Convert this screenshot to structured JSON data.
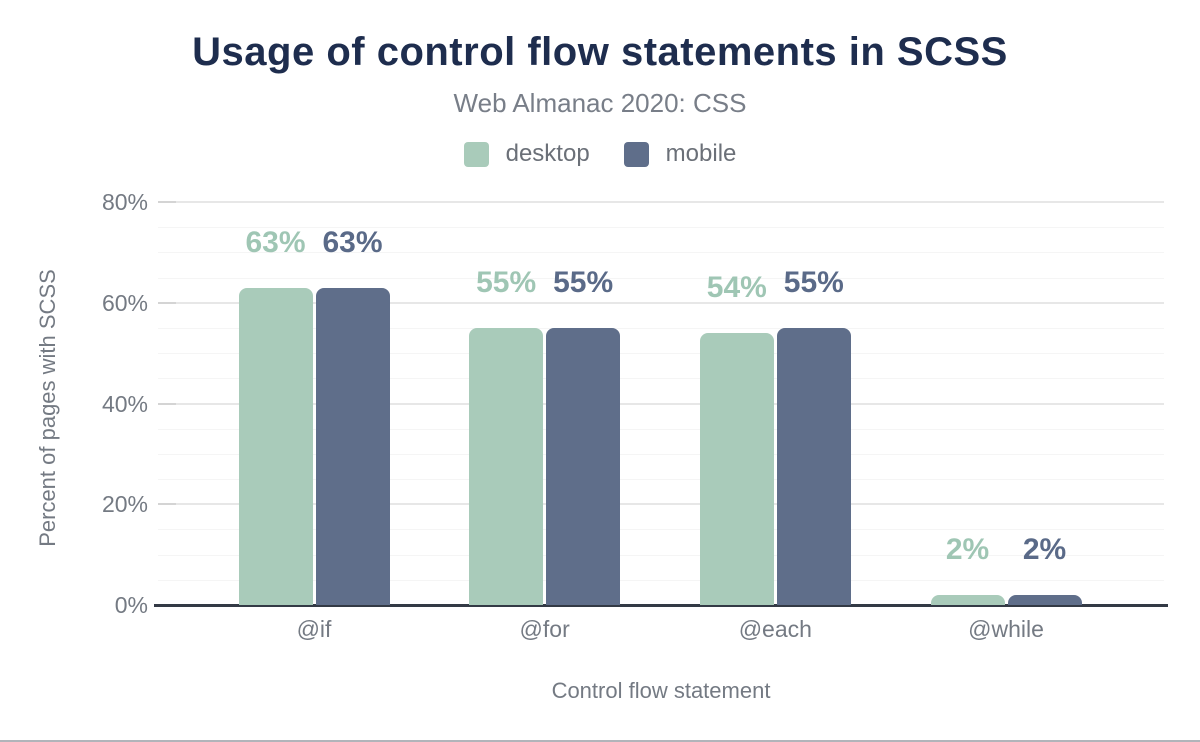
{
  "header": {
    "title": "Usage of control flow statements in SCSS",
    "subtitle": "Web Almanac 2020: CSS",
    "title_color": "#1e2d4e",
    "subtitle_color": "#787e88"
  },
  "legend": {
    "text_color": "#6b7078",
    "items": [
      {
        "label": "desktop",
        "color": "#a9cbba"
      },
      {
        "label": "mobile",
        "color": "#5f6e8a"
      }
    ]
  },
  "chart_data": {
    "type": "bar",
    "title": "Usage of control flow statements in SCSS",
    "subtitle": "Web Almanac 2020: CSS",
    "categories": [
      "@if",
      "@for",
      "@each",
      "@while"
    ],
    "series": [
      {
        "name": "desktop",
        "color": "#a9cbba",
        "label_color": "#9fc6b4",
        "values": [
          63,
          55,
          54,
          2
        ]
      },
      {
        "name": "mobile",
        "color": "#5f6e8a",
        "label_color": "#5a6a88",
        "values": [
          63,
          55,
          55,
          2
        ]
      }
    ],
    "value_suffix": "%",
    "xlabel": "Control flow statement",
    "ylabel": "Percent of pages with SCSS",
    "ylim": [
      0,
      80
    ],
    "yticks": [
      0,
      20,
      40,
      60,
      80
    ],
    "ytick_labels": [
      "0%",
      "20%",
      "40%",
      "60%",
      "80%"
    ],
    "minor_grid_step": 5,
    "grid": "horizontal",
    "legend_position": "top",
    "axis_text_color": "#747a83",
    "gridline_major_color": "#e7e7e7",
    "gridline_minor_color": "#f5f5f5",
    "tick_mark_color": "#d4d4d4",
    "baseline_color": "#333a45"
  }
}
